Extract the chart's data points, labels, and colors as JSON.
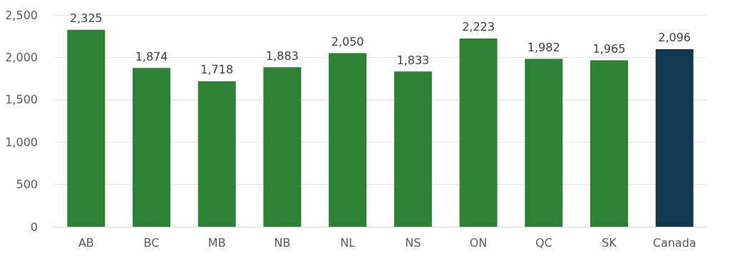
{
  "chart_data": {
    "type": "bar",
    "categories": [
      "AB",
      "BC",
      "MB",
      "NB",
      "NL",
      "NS",
      "ON",
      "QC",
      "SK",
      "Canada"
    ],
    "values": [
      2325,
      1874,
      1718,
      1883,
      2050,
      1833,
      2223,
      1982,
      1965,
      2096
    ],
    "colors": [
      "#2e8236",
      "#2e8236",
      "#2e8236",
      "#2e8236",
      "#2e8236",
      "#2e8236",
      "#2e8236",
      "#2e8236",
      "#2e8236",
      "#12384f"
    ],
    "ylim": [
      0,
      2500
    ],
    "yticks": [
      {
        "value": 0,
        "label": "0"
      },
      {
        "value": 500,
        "label": "500"
      },
      {
        "value": 1000,
        "label": "1,000"
      },
      {
        "value": 1500,
        "label": "1,500"
      },
      {
        "value": 2000,
        "label": "2,000"
      },
      {
        "value": 2500,
        "label": "2,500"
      }
    ],
    "value_labels": [
      "2,325",
      "1,874",
      "1,718",
      "1,883",
      "2,050",
      "1,833",
      "2,223",
      "1,982",
      "1,965",
      "2,096"
    ],
    "grid": "y"
  }
}
